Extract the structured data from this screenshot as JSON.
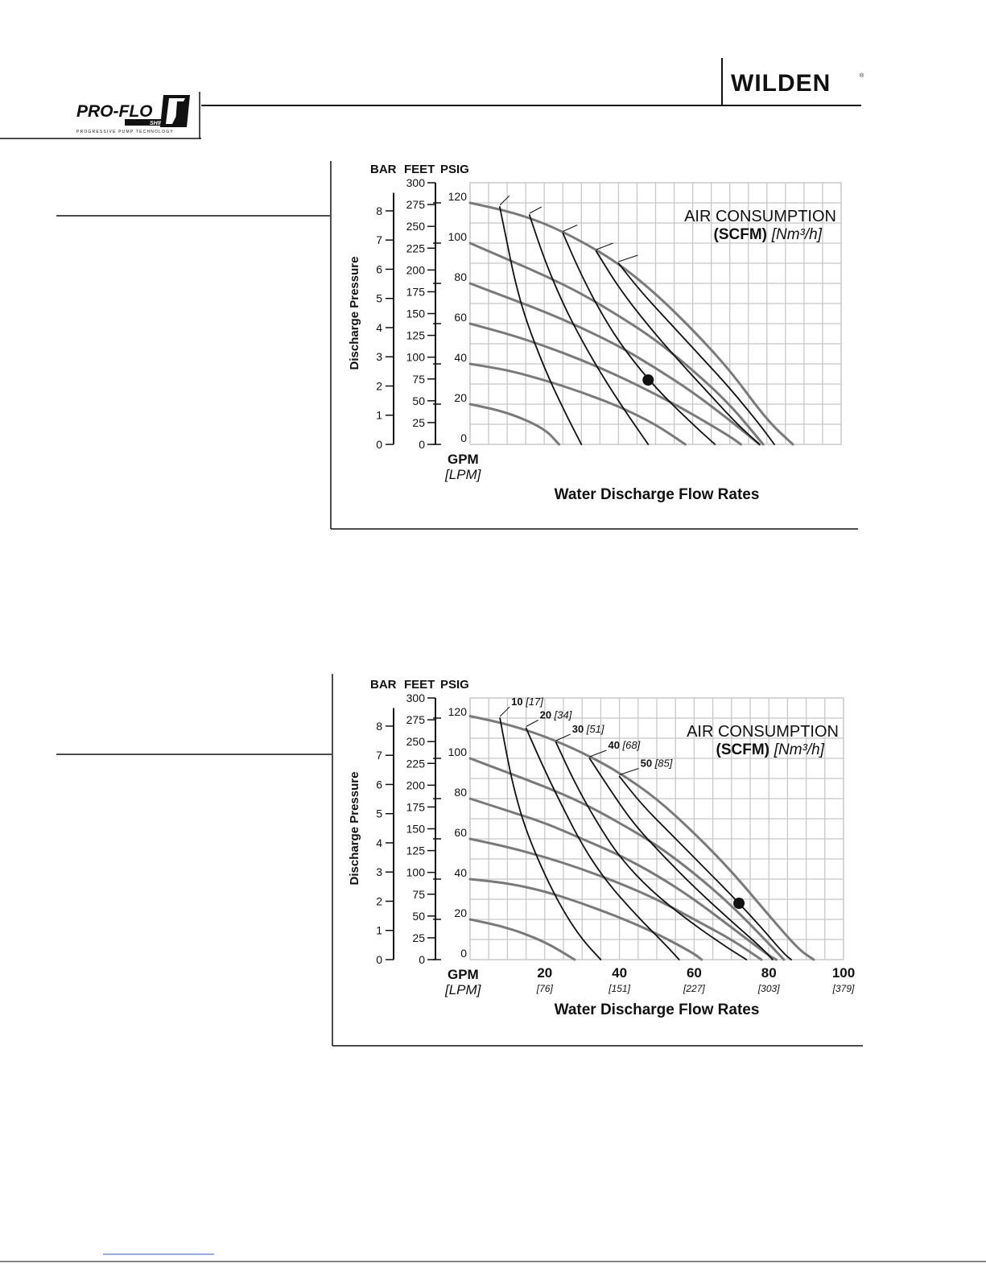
{
  "header": {
    "brand_logo_text": "WILDEN",
    "registered_mark": "®",
    "product_logo_text": "PRO-FLO",
    "product_logo_sub": "SHIFT",
    "product_logo_tagline": "PROGRESSIVE PUMP TECHNOLOGY"
  },
  "colors": {
    "air_curve": "#7a7a7a",
    "flow_curve": "#111111",
    "grid": "#c8c8c8",
    "axis": "#111111",
    "text": "#111111"
  },
  "chart_data": [
    {
      "type": "line",
      "xlabel": "Water Discharge Flow Rates",
      "x_unit_primary": "GPM",
      "x_unit_secondary": "[LPM]",
      "x_ticks": [],
      "x_ticks_metric": [],
      "ylabel": "Discharge Pressure",
      "y_units": [
        "BAR",
        "FEET",
        "PSIG"
      ],
      "y_ticks_psig": [
        "120",
        "100",
        "80",
        "60",
        "40",
        "20",
        "0"
      ],
      "y_ticks_feet": [
        "300",
        "275",
        "250",
        "225",
        "200",
        "175",
        "150",
        "125",
        "100",
        "75",
        "50",
        "25",
        "0"
      ],
      "y_ticks_bar": [
        "8",
        "7",
        "6",
        "5",
        "4",
        "3",
        "2",
        "1",
        "0"
      ],
      "xlim": [
        0,
        100
      ],
      "ylim": [
        0,
        130
      ],
      "grid": true,
      "legend_title": "AIR CONSUMPTION",
      "legend_unit_bold": "(SCFM)",
      "legend_unit_italic": "[Nm³/h]",
      "legend_placement": "top-right",
      "air_labels": [],
      "air_curves": [
        {
          "values": [
            [
              0,
              120
            ],
            [
              10,
              116
            ],
            [
              20,
              110
            ],
            [
              30,
              101
            ],
            [
              40,
              90
            ],
            [
              50,
              75
            ],
            [
              60,
              57
            ],
            [
              70,
              37
            ],
            [
              80,
              12
            ],
            [
              87,
              0
            ]
          ]
        },
        {
          "values": [
            [
              0,
              100
            ],
            [
              10,
              92
            ],
            [
              20,
              84
            ],
            [
              30,
              75
            ],
            [
              40,
              64
            ],
            [
              50,
              52
            ],
            [
              60,
              37
            ],
            [
              70,
              20
            ],
            [
              79,
              0
            ]
          ]
        },
        {
          "values": [
            [
              0,
              80
            ],
            [
              10,
              73
            ],
            [
              20,
              66
            ],
            [
              30,
              58
            ],
            [
              40,
              49
            ],
            [
              50,
              38
            ],
            [
              60,
              26
            ],
            [
              70,
              12
            ],
            [
              78,
              0
            ]
          ]
        },
        {
          "values": [
            [
              0,
              60
            ],
            [
              10,
              55
            ],
            [
              20,
              49
            ],
            [
              30,
              42
            ],
            [
              40,
              34
            ],
            [
              50,
              25
            ],
            [
              60,
              15
            ],
            [
              70,
              4
            ],
            [
              73,
              0
            ]
          ]
        },
        {
          "values": [
            [
              0,
              40
            ],
            [
              10,
              37
            ],
            [
              20,
              32
            ],
            [
              30,
              26
            ],
            [
              40,
              19
            ],
            [
              50,
              10
            ],
            [
              58,
              0
            ]
          ]
        },
        {
          "values": [
            [
              0,
              20
            ],
            [
              10,
              16
            ],
            [
              20,
              8
            ],
            [
              24,
              0
            ]
          ]
        }
      ],
      "flow_curves": [
        {
          "values": [
            [
              8,
              118
            ],
            [
              10,
              100
            ],
            [
              12,
              82
            ],
            [
              15,
              62
            ],
            [
              20,
              38
            ],
            [
              25,
              18
            ],
            [
              30,
              0
            ]
          ]
        },
        {
          "values": [
            [
              16,
              114
            ],
            [
              20,
              92
            ],
            [
              25,
              70
            ],
            [
              30,
              52
            ],
            [
              36,
              33
            ],
            [
              42,
              16
            ],
            [
              48,
              0
            ]
          ]
        },
        {
          "values": [
            [
              25,
              105
            ],
            [
              30,
              84
            ],
            [
              36,
              63
            ],
            [
              42,
              46
            ],
            [
              50,
              28
            ],
            [
              60,
              10
            ],
            [
              66,
              0
            ]
          ]
        },
        {
          "values": [
            [
              34,
              96
            ],
            [
              40,
              78
            ],
            [
              48,
              59
            ],
            [
              56,
              42
            ],
            [
              64,
              26
            ],
            [
              72,
              10
            ],
            [
              78,
              0
            ]
          ]
        },
        {
          "values": [
            [
              40,
              90
            ],
            [
              46,
              76
            ],
            [
              54,
              60
            ],
            [
              62,
              44
            ],
            [
              70,
              28
            ],
            [
              78,
              10
            ],
            [
              82,
              0
            ]
          ]
        }
      ],
      "operating_point": {
        "x": 48,
        "y": 32
      }
    },
    {
      "type": "line",
      "xlabel": "Water Discharge Flow Rates",
      "x_unit_primary": "GPM",
      "x_unit_secondary": "[LPM]",
      "x_ticks": [
        "20",
        "40",
        "60",
        "80",
        "100"
      ],
      "x_ticks_metric": [
        "[76]",
        "[151]",
        "[227]",
        "[303]",
        "[379]"
      ],
      "ylabel": "Discharge Pressure",
      "y_units": [
        "BAR",
        "FEET",
        "PSIG"
      ],
      "y_ticks_psig": [
        "120",
        "100",
        "80",
        "60",
        "40",
        "20",
        "0"
      ],
      "y_ticks_feet": [
        "300",
        "275",
        "250",
        "225",
        "200",
        "175",
        "150",
        "125",
        "100",
        "75",
        "50",
        "25",
        "0"
      ],
      "y_ticks_bar": [
        "8",
        "7",
        "6",
        "5",
        "4",
        "3",
        "2",
        "1",
        "0"
      ],
      "xlim": [
        0,
        100
      ],
      "ylim": [
        0,
        130
      ],
      "grid": true,
      "legend_title": "AIR CONSUMPTION",
      "legend_unit_bold": "(SCFM)",
      "legend_unit_italic": "[Nm³/h]",
      "legend_placement": "top-right",
      "air_labels": [
        {
          "scfm": "10",
          "nm3h": "[17]"
        },
        {
          "scfm": "20",
          "nm3h": "[34]"
        },
        {
          "scfm": "30",
          "nm3h": "[51]"
        },
        {
          "scfm": "40",
          "nm3h": "[68]"
        },
        {
          "scfm": "50",
          "nm3h": "[85]"
        }
      ],
      "air_curves": [
        {
          "values": [
            [
              0,
              121
            ],
            [
              10,
              117
            ],
            [
              20,
              111
            ],
            [
              30,
              103
            ],
            [
              40,
              93
            ],
            [
              50,
              80
            ],
            [
              60,
              63
            ],
            [
              70,
              44
            ],
            [
              80,
              22
            ],
            [
              88,
              5
            ],
            [
              92,
              0
            ]
          ]
        },
        {
          "values": [
            [
              0,
              100
            ],
            [
              10,
              93
            ],
            [
              20,
              86
            ],
            [
              30,
              78
            ],
            [
              40,
              68
            ],
            [
              50,
              57
            ],
            [
              60,
              43
            ],
            [
              70,
              27
            ],
            [
              80,
              8
            ],
            [
              84,
              0
            ]
          ]
        },
        {
          "values": [
            [
              0,
              80
            ],
            [
              10,
              74
            ],
            [
              20,
              68
            ],
            [
              30,
              60
            ],
            [
              40,
              52
            ],
            [
              50,
              42
            ],
            [
              60,
              30
            ],
            [
              70,
              16
            ],
            [
              80,
              2
            ],
            [
              82,
              0
            ]
          ]
        },
        {
          "values": [
            [
              0,
              60
            ],
            [
              10,
              56
            ],
            [
              20,
              51
            ],
            [
              30,
              45
            ],
            [
              40,
              38
            ],
            [
              50,
              30
            ],
            [
              60,
              20
            ],
            [
              70,
              10
            ],
            [
              78,
              0
            ]
          ]
        },
        {
          "values": [
            [
              0,
              40
            ],
            [
              10,
              38
            ],
            [
              20,
              34
            ],
            [
              30,
              28
            ],
            [
              40,
              21
            ],
            [
              50,
              13
            ],
            [
              60,
              3
            ],
            [
              62,
              0
            ]
          ]
        },
        {
          "values": [
            [
              0,
              20
            ],
            [
              10,
              16
            ],
            [
              20,
              9
            ],
            [
              28,
              0
            ]
          ]
        }
      ],
      "flow_curves": [
        {
          "values": [
            [
              8,
              120
            ],
            [
              10,
              100
            ],
            [
              12,
              83
            ],
            [
              15,
              64
            ],
            [
              20,
              42
            ],
            [
              25,
              24
            ],
            [
              30,
              10
            ],
            [
              35,
              0
            ]
          ]
        },
        {
          "values": [
            [
              15,
              115
            ],
            [
              20,
              94
            ],
            [
              25,
              75
            ],
            [
              30,
              57
            ],
            [
              36,
              40
            ],
            [
              44,
              23
            ],
            [
              52,
              8
            ],
            [
              56,
              0
            ]
          ]
        },
        {
          "values": [
            [
              23,
              108
            ],
            [
              28,
              88
            ],
            [
              34,
              68
            ],
            [
              40,
              51
            ],
            [
              48,
              35
            ],
            [
              58,
              20
            ],
            [
              68,
              7
            ],
            [
              74,
              0
            ]
          ]
        },
        {
          "values": [
            [
              32,
              100
            ],
            [
              38,
              83
            ],
            [
              44,
              67
            ],
            [
              52,
              51
            ],
            [
              60,
              36
            ],
            [
              70,
              19
            ],
            [
              78,
              6
            ],
            [
              81,
              0
            ]
          ]
        },
        {
          "values": [
            [
              40,
              91
            ],
            [
              46,
              77
            ],
            [
              54,
              62
            ],
            [
              62,
              47
            ],
            [
              70,
              32
            ],
            [
              78,
              16
            ],
            [
              84,
              3
            ],
            [
              86,
              0
            ]
          ]
        }
      ],
      "operating_point": {
        "x": 72,
        "y": 28
      }
    }
  ]
}
